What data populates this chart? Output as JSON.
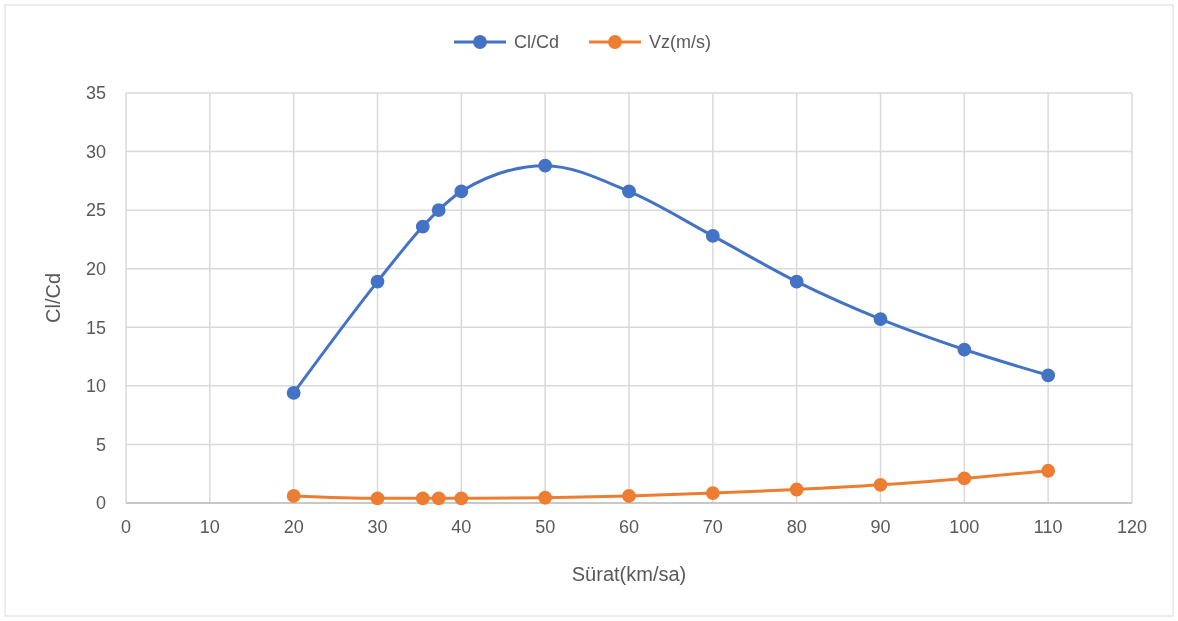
{
  "chart_data": {
    "type": "line",
    "xlabel": "Sürat(km/sa)",
    "ylabel": "Cl/Cd",
    "x": [
      20,
      30,
      35.4,
      37.3,
      40,
      50,
      60,
      70,
      80,
      90,
      100,
      110
    ],
    "series": [
      {
        "name": "Cl/Cd",
        "color": "#4472c4",
        "values": [
          9.4,
          18.9,
          23.6,
          25.0,
          26.6,
          28.8,
          26.6,
          22.8,
          18.9,
          15.7,
          13.1,
          10.9
        ]
      },
      {
        "name": "Vz(m/s)",
        "color": "#ed7d31",
        "values": [
          0.6,
          0.4,
          0.4,
          0.4,
          0.4,
          0.45,
          0.6,
          0.85,
          1.15,
          1.55,
          2.1,
          2.75
        ]
      }
    ],
    "xlim": [
      0,
      120
    ],
    "xticks": [
      0,
      10,
      20,
      30,
      40,
      50,
      60,
      70,
      80,
      90,
      100,
      110,
      120
    ],
    "ylim": [
      0,
      35
    ],
    "yticks": [
      0,
      5,
      10,
      15,
      20,
      25,
      30,
      35
    ],
    "grid": true,
    "legend": "top",
    "marker": "circle",
    "line_style": "solid"
  }
}
